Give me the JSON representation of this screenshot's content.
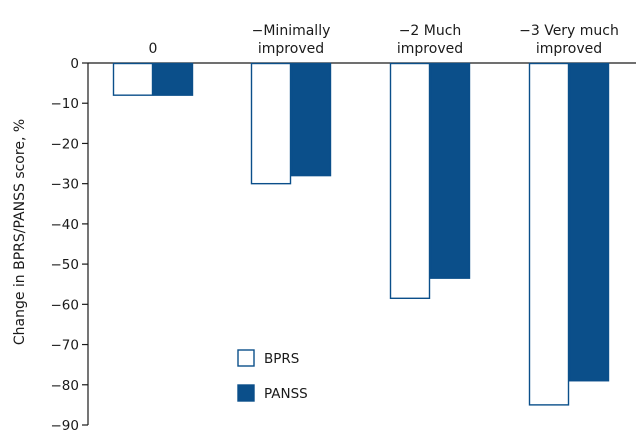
{
  "chart_data": {
    "type": "bar",
    "title": "",
    "xlabel": "",
    "ylabel": "Change in BPRS/PANSS score, %",
    "ylim": [
      -90,
      0
    ],
    "yticks": [
      0,
      -10,
      -20,
      -30,
      -40,
      -50,
      -60,
      -70,
      -80,
      -90
    ],
    "ytick_labels": [
      "0",
      "−10",
      "−20",
      "−30",
      "−40",
      "−50",
      "−60",
      "−70",
      "−80",
      "−90"
    ],
    "categories": [
      [
        "0"
      ],
      [
        "−Minimally",
        "improved"
      ],
      [
        "−2 Much",
        "improved"
      ],
      [
        "−3 Very much",
        "improved"
      ]
    ],
    "category_axis_position": "top",
    "series": [
      {
        "name": "BPRS",
        "values": [
          -8,
          -30,
          -58.5,
          -85
        ],
        "fill": "#ffffff",
        "stroke": "#0b4f8a"
      },
      {
        "name": "PANSS",
        "values": [
          -8,
          -28,
          -53.5,
          -79
        ],
        "fill": "#0b4f8a",
        "stroke": "#0b4f8a"
      }
    ],
    "legend": {
      "placement": "bottom-center",
      "entries": [
        "BPRS",
        "PANSS"
      ]
    },
    "grid": false,
    "colors": {
      "accent": "#0b4f8a",
      "axis": "#1a1a1a"
    }
  }
}
